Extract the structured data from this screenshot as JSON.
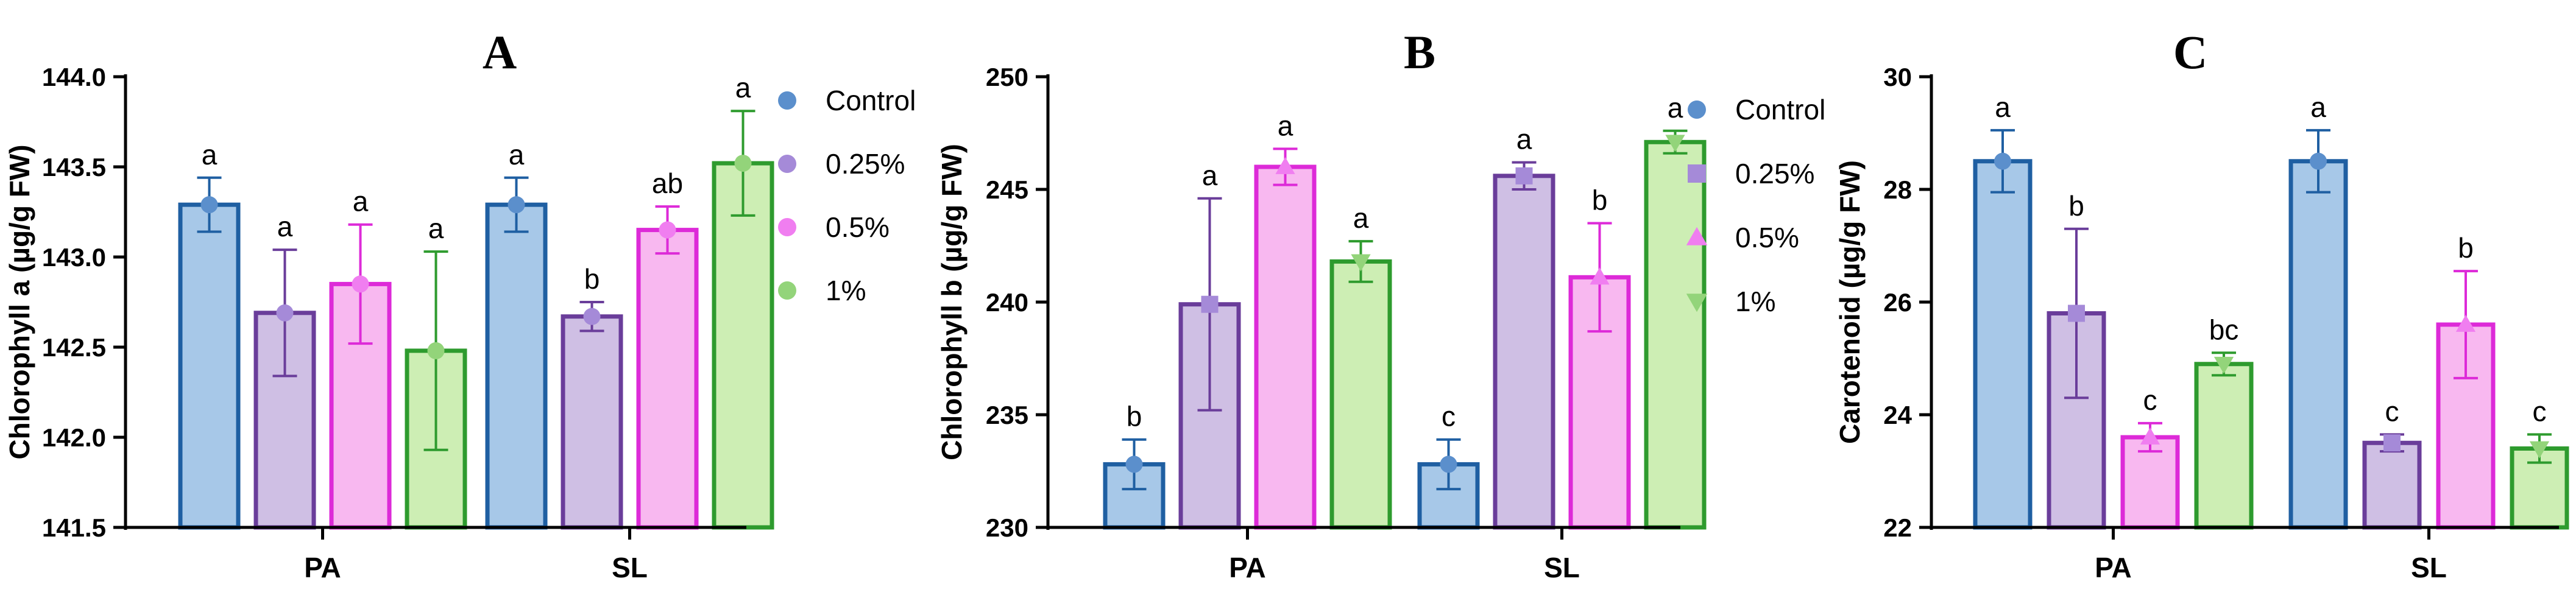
{
  "chart_data": [
    {
      "type": "bar",
      "panel_label": "A",
      "title": "",
      "xlabel": "",
      "ylabel": "Chlorophyll a (µg/g FW)",
      "ylim": [
        141.5,
        144.0
      ],
      "yticks": [
        "141.5",
        "142.0",
        "142.5",
        "143.0",
        "143.5",
        "144.0"
      ],
      "categories": [
        "PA",
        "SL"
      ],
      "legend_position": "right",
      "series": [
        {
          "name": "Control",
          "marker": "circle",
          "values": [
            143.29,
            143.29
          ],
          "errors": [
            0.15,
            0.15
          ],
          "letters": [
            "a",
            "a"
          ]
        },
        {
          "name": "0.25%",
          "marker": "circle",
          "values": [
            142.69,
            142.67
          ],
          "errors": [
            0.35,
            0.08
          ],
          "letters": [
            "a",
            "b"
          ]
        },
        {
          "name": "0.5%",
          "marker": "circle",
          "values": [
            142.85,
            143.15
          ],
          "errors": [
            0.33,
            0.13
          ],
          "letters": [
            "a",
            "ab"
          ]
        },
        {
          "name": "1%",
          "marker": "circle",
          "values": [
            142.48,
            143.52
          ],
          "errors": [
            0.55,
            0.29
          ],
          "letters": [
            "a",
            "a"
          ]
        }
      ]
    },
    {
      "type": "bar",
      "panel_label": "B",
      "title": "",
      "xlabel": "",
      "ylabel": "Chlorophyll b (µg/g FW)",
      "ylim": [
        230,
        250
      ],
      "yticks": [
        "230",
        "235",
        "240",
        "245",
        "250"
      ],
      "categories": [
        "PA",
        "SL"
      ],
      "legend_position": "right",
      "series": [
        {
          "name": "Control",
          "marker": "circle",
          "values": [
            232.8,
            232.8
          ],
          "errors": [
            1.1,
            1.1
          ],
          "letters": [
            "b",
            "c"
          ]
        },
        {
          "name": "0.25%",
          "marker": "square",
          "values": [
            239.9,
            245.6
          ],
          "errors": [
            4.7,
            0.6
          ],
          "letters": [
            "a",
            "a"
          ]
        },
        {
          "name": "0.5%",
          "marker": "triangle-up",
          "values": [
            246.0,
            241.1
          ],
          "errors": [
            0.8,
            2.4
          ],
          "letters": [
            "a",
            "b"
          ]
        },
        {
          "name": "1%",
          "marker": "triangle-down",
          "values": [
            241.8,
            247.1
          ],
          "errors": [
            0.9,
            0.5
          ],
          "letters": [
            "a",
            "a"
          ]
        }
      ]
    },
    {
      "type": "bar",
      "panel_label": "C",
      "title": "",
      "xlabel": "",
      "ylabel": "Carotenoid (µg/g FW)",
      "ylim": [
        22,
        30
      ],
      "yticks": [
        "22",
        "24",
        "26",
        "28",
        "30"
      ],
      "categories": [
        "PA",
        "SL"
      ],
      "legend_position": "none",
      "series": [
        {
          "name": "Control",
          "marker": "circle",
          "values": [
            28.5,
            28.5
          ],
          "errors": [
            0.55,
            0.55
          ],
          "letters": [
            "a",
            "a"
          ]
        },
        {
          "name": "0.25%",
          "marker": "square",
          "values": [
            25.8,
            23.5
          ],
          "errors": [
            1.5,
            0.15
          ],
          "letters": [
            "b",
            "c"
          ]
        },
        {
          "name": "0.5%",
          "marker": "triangle-up",
          "values": [
            23.6,
            25.6
          ],
          "errors": [
            0.25,
            0.95
          ],
          "letters": [
            "c",
            "b"
          ]
        },
        {
          "name": "1%",
          "marker": "triangle-down",
          "values": [
            24.9,
            23.4
          ],
          "errors": [
            0.2,
            0.25
          ],
          "letters": [
            "bc",
            "c"
          ]
        }
      ]
    }
  ],
  "colors": {
    "fills": [
      "#a7c8e8",
      "#cfbfe4",
      "#f8b8f0",
      "#cdeeb4"
    ],
    "strokes": [
      "#1f5fa2",
      "#6a3d9a",
      "#dd2ad8",
      "#2e9b2e"
    ],
    "markers": [
      "#5b8fcc",
      "#a58ad8",
      "#f07ef0",
      "#93d47a"
    ],
    "axis": "#000000"
  }
}
